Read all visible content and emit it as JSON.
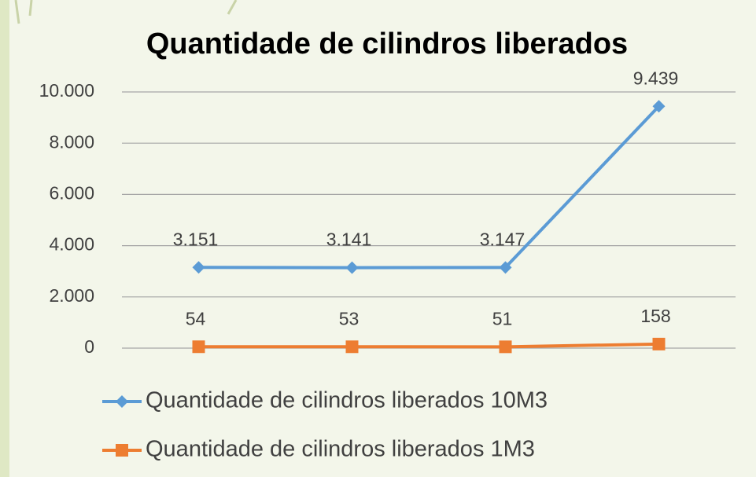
{
  "chart_data": {
    "type": "line",
    "title": "Quantidade de cilindros liberados",
    "categories": [
      null,
      null,
      null,
      null
    ],
    "series": [
      {
        "name": "Quantidade de cilindros liberados 10M3",
        "color": "#5b9bd5",
        "marker": "diamond",
        "values": [
          3151,
          3141,
          3147,
          9439
        ],
        "value_labels": [
          "3.151",
          "3.141",
          "3.147",
          "9.439"
        ]
      },
      {
        "name": "Quantidade de cilindros liberados 1M3",
        "color": "#ed7d31",
        "marker": "square",
        "values": [
          54,
          53,
          51,
          158
        ]
      }
    ],
    "ylim": [
      0,
      10000
    ],
    "yticks": [
      0,
      {
        "value": 2000,
        "label": "2.000"
      },
      {
        "value": 4000,
        "label": "4.000"
      },
      {
        "value": 6000,
        "label": "6.000"
      },
      {
        "value": 8000,
        "label": "8.000"
      },
      {
        "value": 10000,
        "label": "10.000"
      }
    ],
    "grid": true,
    "legend": "bottom"
  }
}
